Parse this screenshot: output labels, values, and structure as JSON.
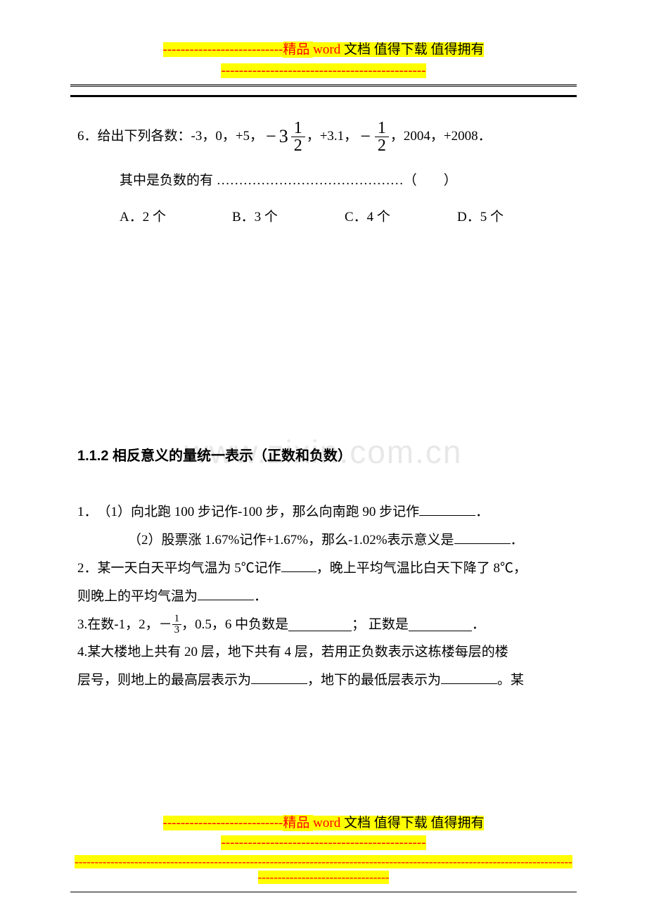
{
  "header": {
    "dashes_left": "---------------------------",
    "text_pre": "精品 ",
    "word": "word ",
    "text_post": "文档  值得下载  值得拥有",
    "dashes_below": "----------------------------------------------"
  },
  "q6": {
    "lead": "6．给出下列各数：-3，0，+5，",
    "minus1": "−",
    "mixed_whole": "3",
    "mixed_num": "1",
    "mixed_den": "2",
    "mid1": "，+3.1，",
    "minus2": "−",
    "f2_num": "1",
    "f2_den": "2",
    "tail": "，2004，+2008．",
    "line2": "其中是负数的有 ……………………………………（　　）",
    "optA": "A．2 个",
    "optB": "B．3 个",
    "optC": "C．4 个",
    "optD": "D．5 个"
  },
  "watermark": "www.zixin.com.cn",
  "section_title": "1.1.2 相反意义的量统一表示（正数和负数）",
  "q1": {
    "p1_a": "1．　（1）向北跑 100 步记作-100 步，那么向南跑 90 步记作",
    "p1_b": "．",
    "p2_a": "（2）股票涨 1.67%记作+1.67%，那么-1.02%表示意义是",
    "p2_b": "．"
  },
  "q2": {
    "a": "2．某一天白天平均气温为 5℃记作",
    "b": "，晚上平均气温比白天下降了 8℃，",
    "c": "则晚上的平均气温为",
    "d": "．"
  },
  "q3": {
    "a": "3.在数-1，2，－",
    "num": "1",
    "den": "3",
    "b": "，0.5，6 中负数是",
    "c": "； 正数是",
    "d": "．"
  },
  "q4": {
    "a": "4.某大楼地上共有 20 层，地下共有 4 层，若用正负数表示这栋楼每层的楼",
    "b": "层号，则地上的最高层表示为",
    "c": "，地下的最低层表示为",
    "d": "。某"
  },
  "footer": {
    "dashes_left": "---------------------------",
    "text_pre": "精品 ",
    "word": "word ",
    "text_post": "文档  值得下载  值得拥有",
    "dashes_below": "----------------------------------------------",
    "long_dashes": "-----------------------------------------------------------------------------------------------------------------------------",
    "short_dashes": "---------------------------------"
  }
}
